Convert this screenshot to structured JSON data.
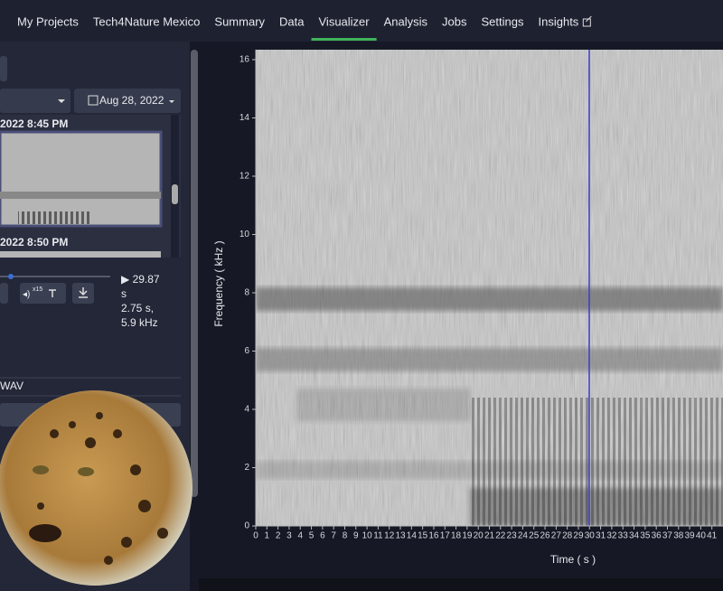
{
  "nav": {
    "items": [
      "My Projects",
      "Tech4Nature Mexico",
      "Summary",
      "Data",
      "Visualizer",
      "Analysis",
      "Jobs",
      "Settings",
      "Insights"
    ],
    "active": 4
  },
  "sidebar": {
    "date_button": "Aug 28, 2022",
    "recordings": [
      "2022 8:45 PM",
      "2022 8:50 PM"
    ],
    "player": {
      "speed": "x15",
      "position": "▶ 29.87",
      "unit": "s",
      "cursor_time": "2.75 s,",
      "cursor_freq": "5.9 kHz"
    },
    "format": "WAV"
  },
  "chart_data": {
    "type": "spectrogram",
    "y_label": "Frequency ( kHz )",
    "x_label": "Time ( s )",
    "ylim": [
      0,
      16
    ],
    "yticks": [
      0,
      2,
      4,
      6,
      8,
      10,
      12,
      14,
      16
    ],
    "xlim": [
      0,
      42
    ],
    "xticks": [
      0,
      1,
      2,
      3,
      4,
      5,
      6,
      7,
      8,
      9,
      10,
      11,
      12,
      13,
      14,
      15,
      16,
      17,
      18,
      19,
      20,
      21,
      22,
      23,
      24,
      25,
      26,
      27,
      28,
      29,
      30,
      31,
      32,
      33,
      34,
      35,
      36,
      37,
      38,
      39,
      40,
      41
    ]
  }
}
